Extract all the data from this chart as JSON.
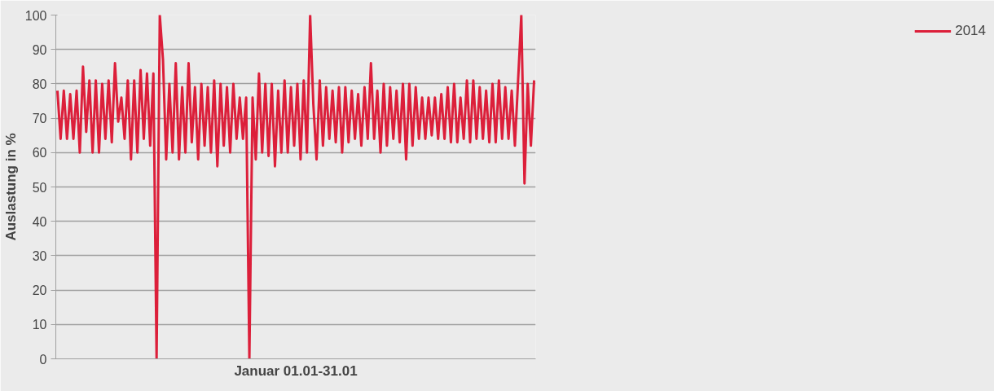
{
  "chart_data": {
    "type": "line",
    "xlabel": "Januar 01.01-31.01",
    "ylabel": "Auslastung in %",
    "categories": [
      null,
      null,
      null,
      null,
      null,
      null,
      null,
      null,
      null,
      null,
      null,
      null,
      null,
      null,
      null,
      null,
      null,
      null,
      null,
      null,
      null,
      null,
      null,
      null,
      null,
      null,
      null,
      null,
      null,
      null,
      null,
      null,
      null,
      null,
      null,
      null,
      null,
      null,
      null,
      null,
      null,
      null,
      null,
      null,
      null,
      null,
      null,
      null,
      null,
      null,
      null,
      null,
      null,
      null,
      null,
      null,
      null,
      null,
      null,
      null,
      null,
      null,
      null,
      null,
      null,
      null,
      null,
      null,
      null,
      null,
      null,
      null,
      null,
      null,
      null,
      null,
      null,
      null,
      null,
      null,
      null,
      null,
      null,
      null,
      null,
      null,
      null,
      null,
      null,
      null,
      null,
      null,
      null,
      null,
      null,
      null,
      null,
      null,
      null,
      null,
      null,
      null,
      null,
      null,
      null,
      null,
      null,
      null,
      null,
      null,
      null,
      null,
      null,
      null,
      null,
      null,
      null,
      null,
      null,
      null,
      null,
      null,
      null,
      null,
      null,
      null,
      null,
      null,
      null,
      null,
      null,
      null,
      null,
      null,
      null,
      null,
      null,
      null,
      null,
      null,
      null,
      null,
      null,
      null,
      null,
      null,
      null,
      null,
      null,
      null
    ],
    "series": [
      {
        "name": "2014",
        "color": "#dc1f3a",
        "values": [
          78,
          64,
          78,
          64,
          77,
          64,
          78,
          60,
          85,
          66,
          81,
          60,
          81,
          60,
          80,
          64,
          81,
          63,
          86,
          69,
          76,
          64,
          81,
          58,
          81,
          60,
          84,
          64,
          83,
          62,
          83,
          0,
          100,
          87,
          58,
          80,
          60,
          86,
          58,
          79,
          60,
          86,
          63,
          79,
          58,
          80,
          62,
          79,
          60,
          81,
          56,
          80,
          62,
          79,
          60,
          80,
          64,
          76,
          64,
          76,
          0,
          76,
          58,
          83,
          60,
          80,
          59,
          80,
          56,
          78,
          60,
          81,
          60,
          79,
          62,
          80,
          58,
          81,
          60,
          100,
          74,
          58,
          81,
          62,
          79,
          64,
          78,
          63,
          79,
          60,
          79,
          63,
          78,
          64,
          77,
          62,
          79,
          64,
          86,
          64,
          78,
          60,
          80,
          62,
          79,
          64,
          78,
          63,
          80,
          58,
          80,
          62,
          79,
          64,
          76,
          64,
          76,
          65,
          76,
          64,
          77,
          64,
          79,
          63,
          80,
          63,
          76,
          64,
          81,
          63,
          81,
          64,
          79,
          64,
          78,
          63,
          80,
          63,
          81,
          64,
          79,
          64,
          78,
          62,
          81,
          100,
          51,
          80,
          62,
          81
        ]
      }
    ],
    "ylim": [
      0,
      100
    ],
    "yticks": [
      0,
      10,
      20,
      30,
      40,
      50,
      60,
      70,
      80,
      90,
      100
    ],
    "grid": "y",
    "legend": "right",
    "line_style": "solid",
    "marker": "none"
  }
}
